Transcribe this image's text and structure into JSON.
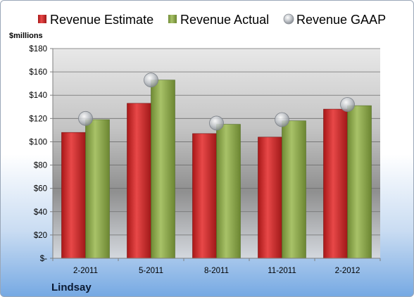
{
  "chart_data": {
    "type": "bar",
    "ylabel": "$millions",
    "ylim": [
      0,
      180
    ],
    "yticks": [
      0,
      20,
      40,
      60,
      80,
      100,
      120,
      140,
      160,
      180
    ],
    "ytick_labels": [
      "$-",
      "$20",
      "$40",
      "$60",
      "$80",
      "$100",
      "$120",
      "$140",
      "$160",
      "$180"
    ],
    "categories": [
      "2-2011",
      "5-2011",
      "8-2011",
      "11-2011",
      "2-2012"
    ],
    "series": [
      {
        "name": "Revenue Estimate",
        "kind": "bar",
        "values": [
          108,
          133,
          107,
          104,
          128
        ],
        "color": "#cc2a2a"
      },
      {
        "name": "Revenue Actual",
        "kind": "bar",
        "values": [
          119,
          153,
          115,
          118,
          131
        ],
        "color": "#8aa34a"
      },
      {
        "name": "Revenue GAAP",
        "kind": "marker",
        "values": [
          120,
          153,
          116,
          119,
          132
        ],
        "color": "#b5b9bf"
      }
    ],
    "company": "Lindsay",
    "legend_position": "top",
    "grid": true
  }
}
